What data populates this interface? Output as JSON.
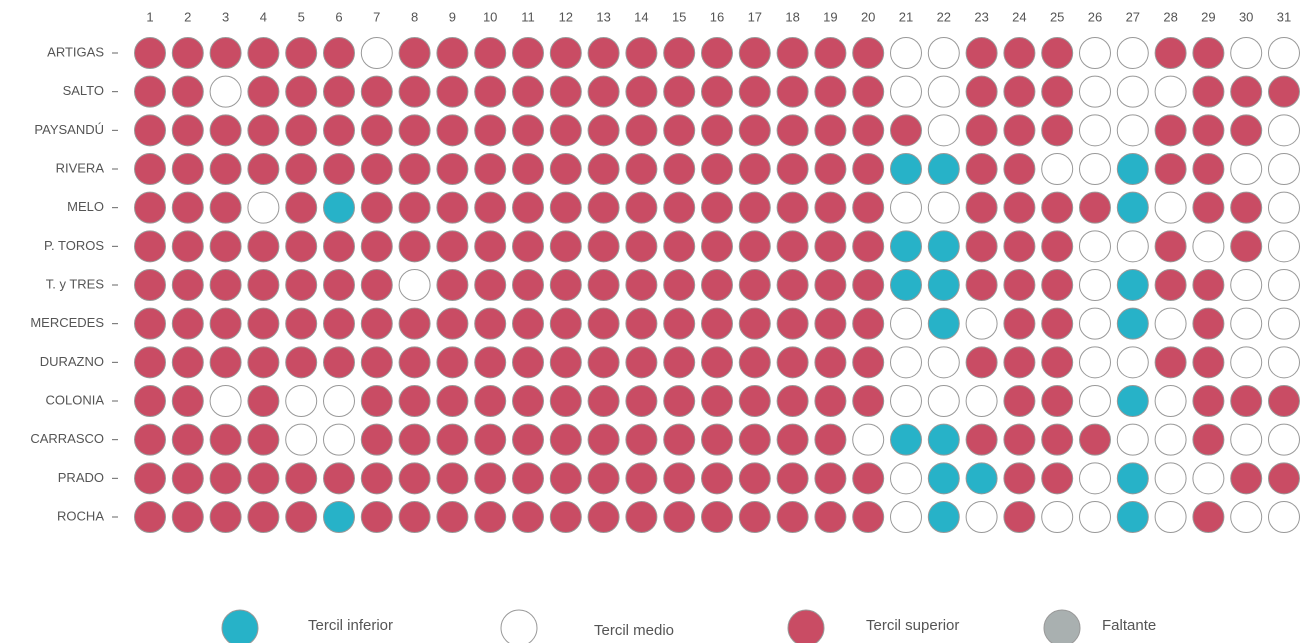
{
  "chart_data": {
    "type": "dot-matrix",
    "days": [
      1,
      2,
      3,
      4,
      5,
      6,
      7,
      8,
      9,
      10,
      11,
      12,
      13,
      14,
      15,
      16,
      17,
      18,
      19,
      20,
      21,
      22,
      23,
      24,
      25,
      26,
      27,
      28,
      29,
      30,
      31
    ],
    "legend": [
      {
        "name": "Tercil inferior",
        "color": "#27b2c8",
        "value": 1
      },
      {
        "name": "Tercil medio",
        "color": "#ffffff",
        "value": 2
      },
      {
        "name": "Tercil superior",
        "color": "#c94c64",
        "value": 3
      },
      {
        "name": "Faltante",
        "color": "#a9b0b0",
        "value": 0
      }
    ],
    "rows": [
      {
        "name": "ARTIGAS",
        "values": [
          3,
          3,
          3,
          3,
          3,
          3,
          2,
          3,
          3,
          3,
          3,
          3,
          3,
          3,
          3,
          3,
          3,
          3,
          3,
          3,
          2,
          2,
          3,
          3,
          3,
          2,
          2,
          3,
          3,
          2,
          2
        ]
      },
      {
        "name": "SALTO",
        "values": [
          3,
          3,
          2,
          3,
          3,
          3,
          3,
          3,
          3,
          3,
          3,
          3,
          3,
          3,
          3,
          3,
          3,
          3,
          3,
          3,
          2,
          2,
          3,
          3,
          3,
          2,
          2,
          2,
          3,
          3,
          3
        ]
      },
      {
        "name": "PAYSANDÚ",
        "values": [
          3,
          3,
          3,
          3,
          3,
          3,
          3,
          3,
          3,
          3,
          3,
          3,
          3,
          3,
          3,
          3,
          3,
          3,
          3,
          3,
          3,
          2,
          3,
          3,
          3,
          2,
          2,
          3,
          3,
          3,
          2
        ]
      },
      {
        "name": "RIVERA",
        "values": [
          3,
          3,
          3,
          3,
          3,
          3,
          3,
          3,
          3,
          3,
          3,
          3,
          3,
          3,
          3,
          3,
          3,
          3,
          3,
          3,
          1,
          1,
          3,
          3,
          2,
          2,
          1,
          3,
          3,
          2,
          2
        ]
      },
      {
        "name": "MELO",
        "values": [
          3,
          3,
          3,
          2,
          3,
          1,
          3,
          3,
          3,
          3,
          3,
          3,
          3,
          3,
          3,
          3,
          3,
          3,
          3,
          3,
          2,
          2,
          3,
          3,
          3,
          3,
          1,
          2,
          3,
          3,
          2
        ]
      },
      {
        "name": "P. TOROS",
        "values": [
          3,
          3,
          3,
          3,
          3,
          3,
          3,
          3,
          3,
          3,
          3,
          3,
          3,
          3,
          3,
          3,
          3,
          3,
          3,
          3,
          1,
          1,
          3,
          3,
          3,
          2,
          2,
          3,
          2,
          3,
          2
        ]
      },
      {
        "name": "T. y TRES",
        "values": [
          3,
          3,
          3,
          3,
          3,
          3,
          3,
          2,
          3,
          3,
          3,
          3,
          3,
          3,
          3,
          3,
          3,
          3,
          3,
          3,
          1,
          1,
          3,
          3,
          3,
          2,
          1,
          3,
          3,
          2,
          2
        ]
      },
      {
        "name": "MERCEDES",
        "values": [
          3,
          3,
          3,
          3,
          3,
          3,
          3,
          3,
          3,
          3,
          3,
          3,
          3,
          3,
          3,
          3,
          3,
          3,
          3,
          3,
          2,
          1,
          2,
          3,
          3,
          2,
          1,
          2,
          3,
          2,
          2
        ]
      },
      {
        "name": "DURAZNO",
        "values": [
          3,
          3,
          3,
          3,
          3,
          3,
          3,
          3,
          3,
          3,
          3,
          3,
          3,
          3,
          3,
          3,
          3,
          3,
          3,
          3,
          2,
          2,
          3,
          3,
          3,
          2,
          2,
          3,
          3,
          2,
          2
        ]
      },
      {
        "name": "COLONIA",
        "values": [
          3,
          3,
          2,
          3,
          2,
          2,
          3,
          3,
          3,
          3,
          3,
          3,
          3,
          3,
          3,
          3,
          3,
          3,
          3,
          3,
          2,
          2,
          2,
          3,
          3,
          2,
          1,
          2,
          3,
          3,
          3
        ]
      },
      {
        "name": "CARRASCO",
        "values": [
          3,
          3,
          3,
          3,
          2,
          2,
          3,
          3,
          3,
          3,
          3,
          3,
          3,
          3,
          3,
          3,
          3,
          3,
          3,
          2,
          1,
          1,
          3,
          3,
          3,
          3,
          2,
          2,
          3,
          2,
          2
        ]
      },
      {
        "name": "PRADO",
        "values": [
          3,
          3,
          3,
          3,
          3,
          3,
          3,
          3,
          3,
          3,
          3,
          3,
          3,
          3,
          3,
          3,
          3,
          3,
          3,
          3,
          2,
          1,
          1,
          3,
          3,
          2,
          1,
          2,
          2,
          3,
          3
        ]
      },
      {
        "name": "ROCHA",
        "values": [
          3,
          3,
          3,
          3,
          3,
          1,
          3,
          3,
          3,
          3,
          3,
          3,
          3,
          3,
          3,
          3,
          3,
          3,
          3,
          3,
          2,
          1,
          2,
          3,
          2,
          2,
          1,
          2,
          3,
          2,
          2
        ]
      }
    ]
  }
}
